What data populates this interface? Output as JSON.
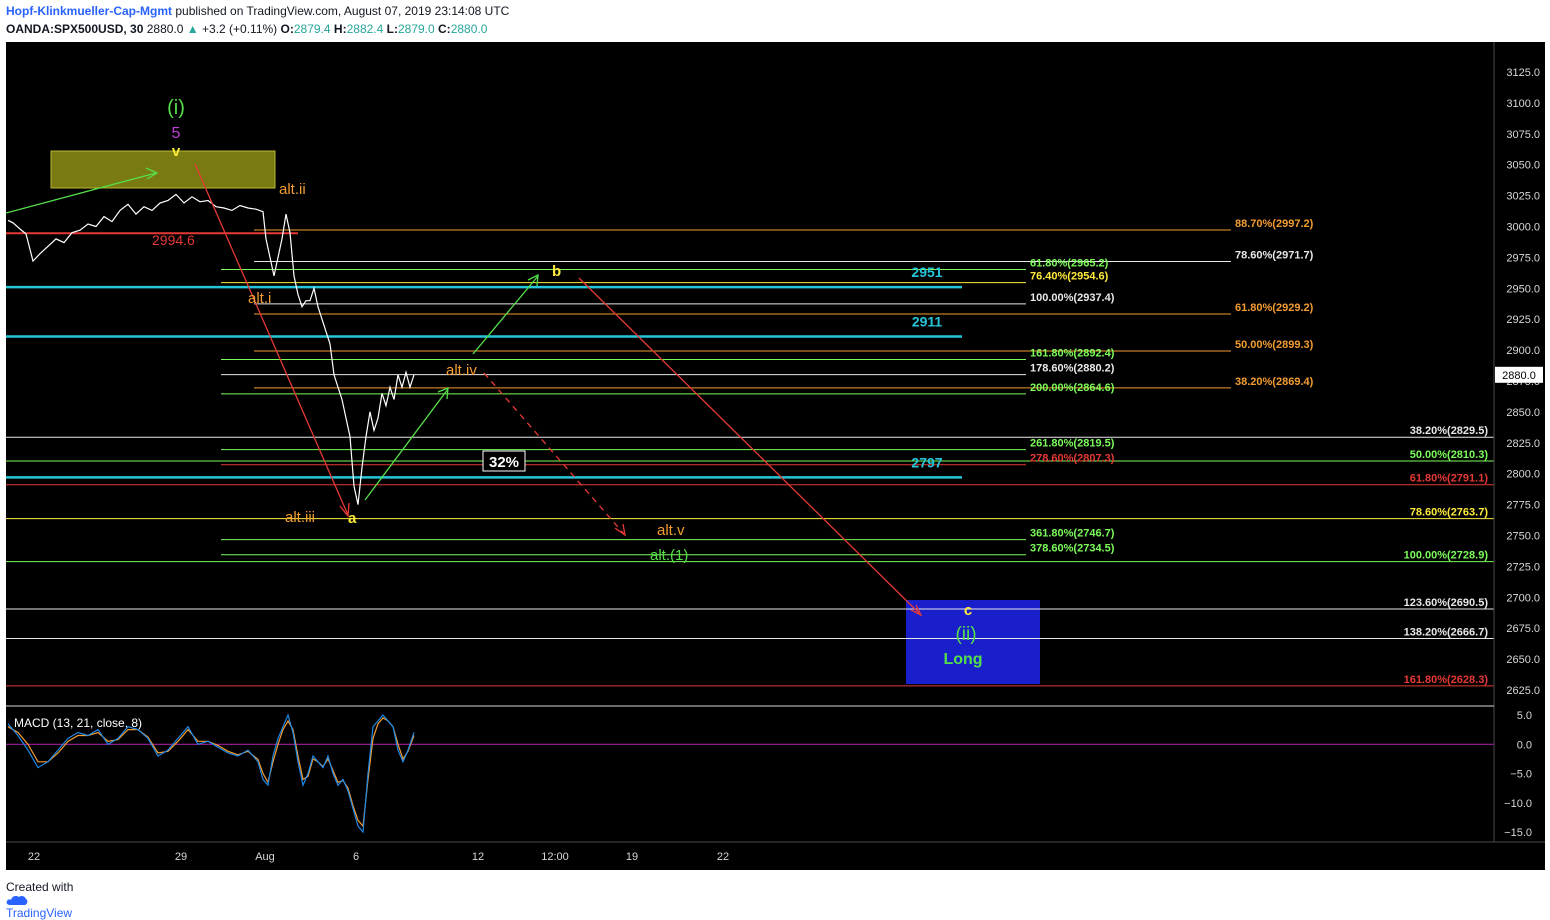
{
  "header": {
    "author": "Hopf-Klinkmueller-Cap-Mgmt",
    "published": "published on TradingView.com, August 07, 2019 23:14:08 UTC",
    "symbol": "OANDA:SPX500USD, 30",
    "last": "2880.0",
    "change_triangle": "▲",
    "change": "+3.2 (+0.11%)",
    "o_label": "O:",
    "o_value": "2879.4",
    "h_label": "H:",
    "h_value": "2882.4",
    "l_label": "L:",
    "l_value": "2879.0",
    "c_label": "C:",
    "c_value": "2880.0"
  },
  "footer": {
    "created": "Created with",
    "brand": "TradingView",
    "logo_icon": "tradingview-cloud-icon"
  },
  "colors": {
    "background": "#000000",
    "cyan": "#26c6da",
    "red": "#e53935",
    "green": "#7cfc5a",
    "orange": "#f39c32",
    "yellow": "#ffeb3b",
    "magenta": "#c13bd6",
    "blue_box": "#1a1fcc",
    "olive_box": "#7a7a12",
    "macd": "#1e88e5",
    "signal": "#f39c32",
    "zero_line": "#a020a0"
  },
  "chart_data": [
    {
      "type": "line",
      "title": "",
      "ylim": [
        2610,
        3140
      ],
      "y_ticks": [
        "3125.0",
        "3100.0",
        "3075.0",
        "3050.0",
        "3025.0",
        "3000.0",
        "2975.0",
        "2950.0",
        "2925.0",
        "2900.0",
        "2875.0",
        "2850.0",
        "2825.0",
        "2800.0",
        "2775.0",
        "2750.0",
        "2725.0",
        "2700.0",
        "2675.0",
        "2650.0",
        "2625.0"
      ],
      "x_ticks": [
        "22",
        "29",
        "Aug",
        "6",
        "12",
        "12:00",
        "19",
        "22"
      ],
      "last_price_label": "2880.0",
      "price_series": {
        "x": [
          0,
          5,
          12,
          18,
          25,
          32,
          40,
          48,
          56,
          64,
          72,
          80,
          88,
          96,
          104,
          112,
          120,
          128,
          136,
          144,
          152,
          160,
          168,
          176,
          184,
          192,
          200,
          208,
          216,
          224,
          232,
          240,
          248,
          255,
          258,
          262,
          266,
          270,
          274,
          278,
          282,
          286,
          290,
          294,
          298,
          302,
          306,
          310,
          314,
          318,
          322,
          326,
          330,
          334,
          338,
          342,
          346,
          350,
          354,
          358,
          362,
          366,
          370,
          374,
          378,
          382,
          386,
          390,
          394,
          398,
          402,
          406
        ],
        "y": [
          3005,
          3003,
          2998,
          2994,
          2972,
          2978,
          2984,
          2990,
          2987,
          2995,
          2997,
          3002,
          3000,
          3008,
          3004,
          3013,
          3018,
          3010,
          3016,
          3013,
          3019,
          3021,
          3026,
          3019,
          3024,
          3020,
          3021,
          3016,
          3015,
          3013,
          3017,
          3015,
          3014,
          3012,
          2990,
          2975,
          2960,
          2975,
          2990,
          3010,
          2995,
          2960,
          2945,
          2935,
          2940,
          2940,
          2950,
          2935,
          2925,
          2915,
          2905,
          2880,
          2870,
          2860,
          2845,
          2830,
          2790,
          2775,
          2805,
          2830,
          2850,
          2835,
          2845,
          2865,
          2855,
          2870,
          2860,
          2880,
          2870,
          2882,
          2870,
          2880
        ]
      },
      "horizontal_levels": [
        {
          "label": "88.70%(2997.2)",
          "value": 2997.2,
          "color": "orange"
        },
        {
          "label": "78.60%(2971.7)",
          "value": 2971.7,
          "color": "white"
        },
        {
          "label": "61.80%(2965.2)",
          "value": 2965.2,
          "color": "green"
        },
        {
          "label": "76.40%(2954.6)",
          "value": 2954.6,
          "color": "yellow"
        },
        {
          "label": "100.00%(2937.4)",
          "value": 2937.4,
          "color": "white"
        },
        {
          "label": "61.80%(2929.2)",
          "value": 2929.2,
          "color": "orange"
        },
        {
          "label": "50.00%(2899.3)",
          "value": 2899.3,
          "color": "orange"
        },
        {
          "label": "161.80%(2892.4)",
          "value": 2892.4,
          "color": "green"
        },
        {
          "label": "178.60%(2880.2)",
          "value": 2880.2,
          "color": "white"
        },
        {
          "label": "38.20%(2869.4)",
          "value": 2869.4,
          "color": "orange"
        },
        {
          "label": "200.00%(2864.6)",
          "value": 2864.6,
          "color": "green"
        },
        {
          "label": "38.20%(2829.5)",
          "value": 2829.5,
          "color": "white"
        },
        {
          "label": "261.80%(2819.5)",
          "value": 2819.5,
          "color": "green"
        },
        {
          "label": "50.00%(2810.3)",
          "value": 2810.3,
          "color": "green"
        },
        {
          "label": "278.60%(2807.3)",
          "value": 2807.3,
          "color": "red"
        },
        {
          "label": "61.80%(2791.1)",
          "value": 2791.1,
          "color": "red"
        },
        {
          "label": "78.60%(2763.7)",
          "value": 2763.7,
          "color": "yellow"
        },
        {
          "label": "361.80%(2746.7)",
          "value": 2746.7,
          "color": "green"
        },
        {
          "label": "378.60%(2734.5)",
          "value": 2734.5,
          "color": "green"
        },
        {
          "label": "100.00%(2728.9)",
          "value": 2728.9,
          "color": "green"
        },
        {
          "label": "123.60%(2690.5)",
          "value": 2690.5,
          "color": "white"
        },
        {
          "label": "138.20%(2666.7)",
          "value": 2666.7,
          "color": "white"
        },
        {
          "label": "161.80%(2628.3)",
          "value": 2628.3,
          "color": "red"
        }
      ],
      "support_resistance": [
        {
          "label": "2951",
          "value": 2951
        },
        {
          "label": "2911",
          "value": 2911
        },
        {
          "label": "2797",
          "value": 2797
        }
      ],
      "red_level": {
        "label": "2994.6",
        "value": 2994.6
      },
      "wave_labels": {
        "wave_i": "(i)",
        "five": "5",
        "v": "v",
        "alt_ii": "alt.ii",
        "alt_i": "alt.i",
        "alt_iii": "alt.iii",
        "a": "a",
        "alt_iv": "alt.iv",
        "b": "b",
        "pct": "32%",
        "alt_v": "alt.v",
        "alt_1": "alt.(1)",
        "c": "c",
        "wave_ii": "(ii)",
        "long": "Long"
      }
    },
    {
      "type": "line",
      "title": "MACD (13, 21, close, 8)",
      "ylim": [
        -17,
        6
      ],
      "y_ticks": [
        "5.0",
        "0.0",
        "−5.0",
        "−10.0",
        "−15.0"
      ],
      "macd": {
        "x": [
          0,
          10,
          20,
          30,
          40,
          50,
          60,
          70,
          80,
          90,
          100,
          110,
          120,
          130,
          140,
          150,
          160,
          170,
          180,
          190,
          200,
          210,
          220,
          230,
          240,
          250,
          255,
          260,
          265,
          270,
          275,
          280,
          285,
          290,
          295,
          300,
          305,
          310,
          315,
          320,
          325,
          330,
          335,
          340,
          345,
          350,
          355,
          360,
          365,
          370,
          375,
          380,
          385,
          390,
          395,
          400,
          406
        ],
        "y": [
          3.5,
          1.5,
          -1,
          -4,
          -3,
          -1,
          1,
          2,
          1.5,
          2.5,
          0,
          1,
          3,
          2.5,
          1,
          -2,
          -1,
          1,
          3,
          0,
          0.5,
          -0.5,
          -1.5,
          -2,
          -1,
          -3,
          -6,
          -7,
          -2,
          1,
          3,
          5,
          2,
          -3,
          -7,
          -5,
          -2,
          -3,
          -4,
          -2,
          -5,
          -7,
          -6,
          -8,
          -11,
          -14,
          -15,
          -5,
          3,
          4,
          5,
          4,
          3,
          -1,
          -3,
          -1,
          2
        ]
      },
      "signal": {
        "x": [
          0,
          10,
          20,
          30,
          40,
          50,
          60,
          70,
          80,
          90,
          100,
          110,
          120,
          130,
          140,
          150,
          160,
          170,
          180,
          190,
          200,
          210,
          220,
          230,
          240,
          250,
          255,
          260,
          265,
          270,
          275,
          280,
          285,
          290,
          295,
          300,
          305,
          310,
          315,
          320,
          325,
          330,
          335,
          340,
          345,
          350,
          355,
          360,
          365,
          370,
          375,
          380,
          385,
          390,
          395,
          400,
          406
        ],
        "y": [
          3,
          2,
          0,
          -3,
          -3,
          -1.5,
          0.5,
          1.5,
          1.5,
          2,
          0.5,
          0.8,
          2.5,
          2.5,
          1.2,
          -1.5,
          -1.2,
          0.5,
          2.5,
          0.5,
          0.5,
          -0.2,
          -1.2,
          -1.8,
          -1.2,
          -2.6,
          -5,
          -6.5,
          -3,
          0,
          2.5,
          4,
          2.5,
          -2,
          -6,
          -5.5,
          -2.5,
          -3,
          -3.8,
          -2.5,
          -4.5,
          -6.5,
          -6.2,
          -7.5,
          -10.5,
          -13,
          -14,
          -6,
          1,
          3.5,
          4.5,
          4,
          3,
          0,
          -2.5,
          -1.2,
          1.5
        ]
      }
    }
  ]
}
